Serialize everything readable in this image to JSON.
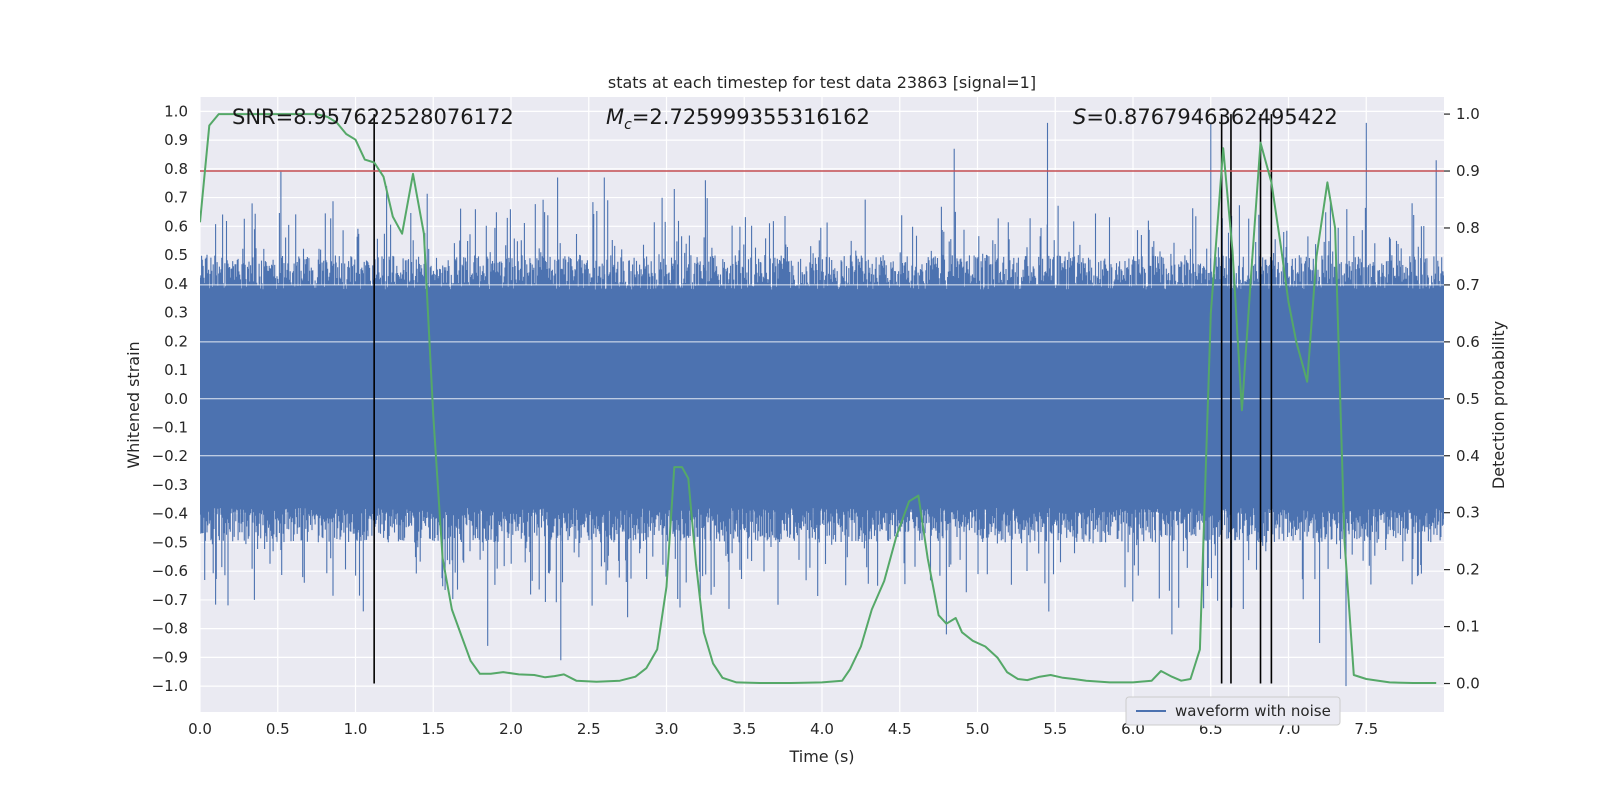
{
  "chart_data": {
    "type": "line",
    "title": "stats at each timestep for test data 23863 [signal=1]",
    "xlabel": "Time (s)",
    "ylabel_left": "Whitened strain",
    "ylabel_right": "Detection probability",
    "xlim": [
      0.0,
      8.0
    ],
    "ylim_left": [
      -1.09,
      1.05
    ],
    "ylim_right": [
      -0.05,
      1.03
    ],
    "x_ticks": [
      0.0,
      0.5,
      1.0,
      1.5,
      2.0,
      2.5,
      3.0,
      3.5,
      4.0,
      4.5,
      5.0,
      5.5,
      6.0,
      6.5,
      7.0,
      7.5
    ],
    "x_tick_labels": [
      "0.0",
      "0.5",
      "1.0",
      "1.5",
      "2.0",
      "2.5",
      "3.0",
      "3.5",
      "4.0",
      "4.5",
      "5.0",
      "5.5",
      "6.0",
      "6.5",
      "7.0",
      "7.5"
    ],
    "y_left_ticks": [
      1.0,
      0.9,
      0.8,
      0.7,
      0.6,
      0.5,
      0.4,
      0.3,
      0.2,
      0.1,
      0.0,
      -0.1,
      -0.2,
      -0.3,
      -0.4,
      -0.5,
      -0.6,
      -0.7,
      -0.8,
      -0.9,
      -1.0
    ],
    "y_left_tick_labels": [
      "1.0",
      "0.9",
      "0.8",
      "0.7",
      "0.6",
      "0.5",
      "0.4",
      "0.3",
      "0.2",
      "0.1",
      "0.0",
      "−0.1",
      "−0.2",
      "−0.3",
      "−0.4",
      "−0.5",
      "−0.6",
      "−0.7",
      "−0.8",
      "−0.9",
      "−1.0"
    ],
    "y_right_ticks": [
      1.0,
      0.9,
      0.8,
      0.7,
      0.6,
      0.5,
      0.4,
      0.3,
      0.2,
      0.1,
      0.0
    ],
    "y_right_tick_labels": [
      "1.0",
      "0.9",
      "0.8",
      "0.7",
      "0.6",
      "0.5",
      "0.4",
      "0.3",
      "0.2",
      "0.1",
      "0.0"
    ],
    "stats": {
      "snr": "SNR=8.957622528076172",
      "mc_symbol": "M",
      "mc_subscript": "c",
      "mc_value": "=2.725999355316162",
      "s_symbol": "S",
      "s_value": "=0.8767946362495422"
    },
    "threshold": 0.9,
    "vlines": [
      1.12,
      6.57,
      6.63,
      6.82,
      6.89
    ],
    "series": [
      {
        "name": "waveform with noise",
        "axis": "left",
        "color": "#4c72b0",
        "envelope_seed": 23863,
        "samples": 1600,
        "spike_times": [
          0.52,
          1.2,
          2.3,
          2.6,
          3.05,
          3.25,
          4.85,
          5.45,
          6.5,
          7.5,
          7.95
        ],
        "spike_values": [
          0.79,
          0.74,
          0.77,
          0.77,
          0.73,
          0.76,
          0.87,
          0.96,
          0.96,
          0.96,
          0.83
        ],
        "dip_times": [
          0.35,
          1.05,
          1.85,
          2.32,
          2.75,
          4.8,
          6.25,
          7.2,
          7.37
        ],
        "dip_values": [
          -0.7,
          -0.74,
          -0.86,
          -0.91,
          -0.76,
          -0.82,
          -0.82,
          -0.85,
          -1.0
        ]
      },
      {
        "name": "detection probability",
        "axis": "right",
        "color": "#55a868",
        "x": [
          0.0,
          0.06,
          0.12,
          0.2,
          0.35,
          0.5,
          0.65,
          0.75,
          0.82,
          0.88,
          0.94,
          1.0,
          1.06,
          1.12,
          1.18,
          1.24,
          1.3,
          1.37,
          1.44,
          1.5,
          1.56,
          1.62,
          1.68,
          1.74,
          1.8,
          1.87,
          1.95,
          2.05,
          2.15,
          2.22,
          2.28,
          2.34,
          2.42,
          2.55,
          2.7,
          2.8,
          2.87,
          2.94,
          3.0,
          3.05,
          3.1,
          3.14,
          3.19,
          3.24,
          3.3,
          3.36,
          3.45,
          3.6,
          3.8,
          4.0,
          4.13,
          4.18,
          4.25,
          4.32,
          4.4,
          4.48,
          4.56,
          4.62,
          4.68,
          4.75,
          4.8,
          4.86,
          4.9,
          4.97,
          5.05,
          5.13,
          5.19,
          5.26,
          5.32,
          5.4,
          5.47,
          5.55,
          5.62,
          5.7,
          5.85,
          6.0,
          6.12,
          6.18,
          6.25,
          6.31,
          6.37,
          6.43,
          6.5,
          6.58,
          6.64,
          6.7,
          6.76,
          6.82,
          6.89,
          6.95,
          7.0,
          7.05,
          7.12,
          7.18,
          7.25,
          7.3,
          7.36,
          7.42,
          7.5,
          7.65,
          7.8,
          7.95
        ],
        "y": [
          0.81,
          0.98,
          1.0,
          1.0,
          1.0,
          1.0,
          1.0,
          1.0,
          0.995,
          0.985,
          0.965,
          0.955,
          0.92,
          0.915,
          0.89,
          0.82,
          0.79,
          0.895,
          0.79,
          0.47,
          0.22,
          0.13,
          0.085,
          0.04,
          0.017,
          0.017,
          0.02,
          0.016,
          0.015,
          0.011,
          0.013,
          0.016,
          0.005,
          0.003,
          0.005,
          0.012,
          0.027,
          0.06,
          0.17,
          0.38,
          0.38,
          0.36,
          0.21,
          0.09,
          0.035,
          0.01,
          0.002,
          0.001,
          0.001,
          0.002,
          0.005,
          0.025,
          0.065,
          0.13,
          0.18,
          0.26,
          0.32,
          0.33,
          0.22,
          0.12,
          0.105,
          0.115,
          0.09,
          0.075,
          0.065,
          0.045,
          0.02,
          0.008,
          0.006,
          0.012,
          0.015,
          0.01,
          0.008,
          0.005,
          0.002,
          0.002,
          0.005,
          0.022,
          0.012,
          0.005,
          0.008,
          0.06,
          0.65,
          0.94,
          0.76,
          0.48,
          0.72,
          0.95,
          0.88,
          0.77,
          0.67,
          0.6,
          0.53,
          0.75,
          0.88,
          0.8,
          0.25,
          0.015,
          0.008,
          0.002,
          0.001,
          0.001
        ]
      }
    ],
    "legend": {
      "label": "waveform with noise",
      "placement": "lower-right"
    }
  }
}
